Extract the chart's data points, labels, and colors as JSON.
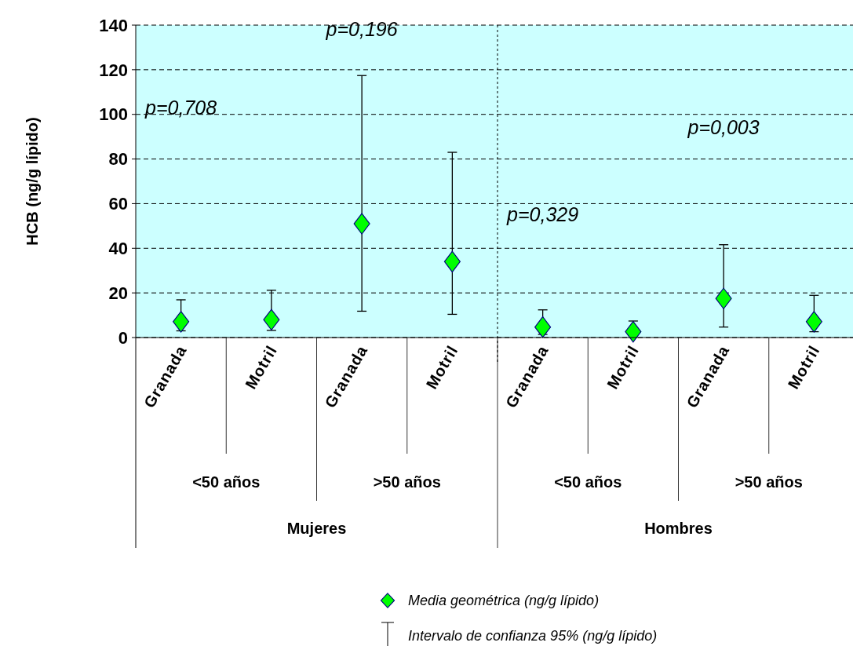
{
  "chart_data": {
    "type": "scatter",
    "ylabel": "HCB (ng/g lípido)",
    "categories": [
      "Granada",
      "Motril",
      "Granada",
      "Motril",
      "Granada",
      "Motril",
      "Granada",
      "Motril"
    ],
    "series": [
      {
        "name": "Media geométrica (ng/g lípido)",
        "color": "#00ff00",
        "values": [
          7.1,
          8.0,
          51.0,
          34.0,
          4.7,
          2.6,
          17.5,
          7.1
        ],
        "errors": [
          [
            3,
            16.9
          ],
          [
            3.2,
            21.2
          ],
          [
            11.8,
            117.4
          ],
          [
            10.4,
            83.0
          ],
          [
            1.4,
            12.4
          ],
          [
            1,
            7.4
          ],
          [
            4.7,
            41.6
          ],
          [
            2.6,
            18.9
          ]
        ]
      }
    ],
    "ylim": [
      0,
      140
    ],
    "yticks": [
      0,
      20,
      40,
      60,
      80,
      100,
      120,
      140
    ],
    "grid": "y",
    "marker": "diamond",
    "legend": "bottom",
    "annotations": [
      "p=0,708",
      "p=0,196",
      "p=0,329",
      "p=0,003",
      "<50 años",
      ">50 años",
      "<50 años",
      ">50 años",
      "Mujeres",
      "Hombres",
      "Intervalo de confianza 95% (ng/g lípido)"
    ]
  }
}
